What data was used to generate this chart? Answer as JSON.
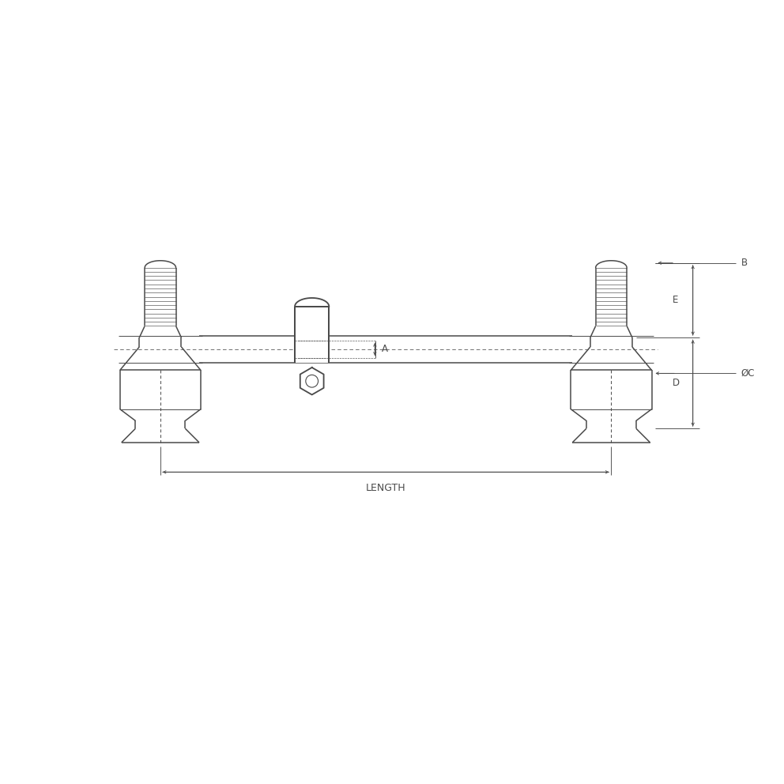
{
  "bg_color": "#ffffff",
  "line_color": "#4a4a4a",
  "dim_color": "#4a4a4a",
  "fig_width": 9.92,
  "fig_height": 9.92,
  "dpi": 100,
  "label_B": "B",
  "label_E": "E",
  "label_D": "D",
  "label_OC": "ØC",
  "label_A": "A",
  "label_LENGTH": "LENGTH",
  "n_threads": 14
}
